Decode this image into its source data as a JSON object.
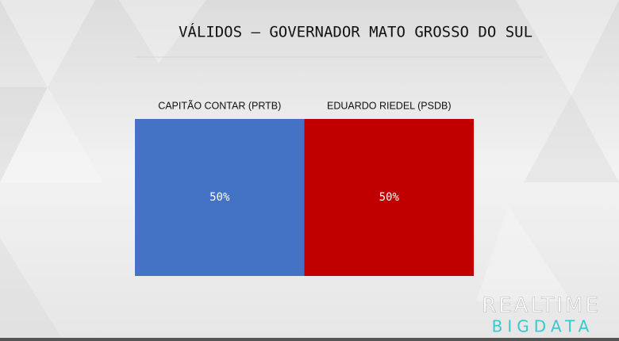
{
  "chart_data": {
    "type": "bar",
    "title": "VÁLIDOS — GOVERNADOR MATO GROSSO DO SUL",
    "series": [
      {
        "name": "CAPITÃO CONTAR (PRTB)",
        "color": "#4472c4",
        "values": [
          50
        ],
        "value_labels": [
          "50%"
        ]
      },
      {
        "name": "EDUARDO RIEDEL (PSDB)",
        "color": "#c00000",
        "values": [
          50
        ],
        "value_labels": [
          "50%"
        ]
      }
    ]
  },
  "watermark": {
    "line1": "REALTIME",
    "line2": "BIGDATA"
  }
}
